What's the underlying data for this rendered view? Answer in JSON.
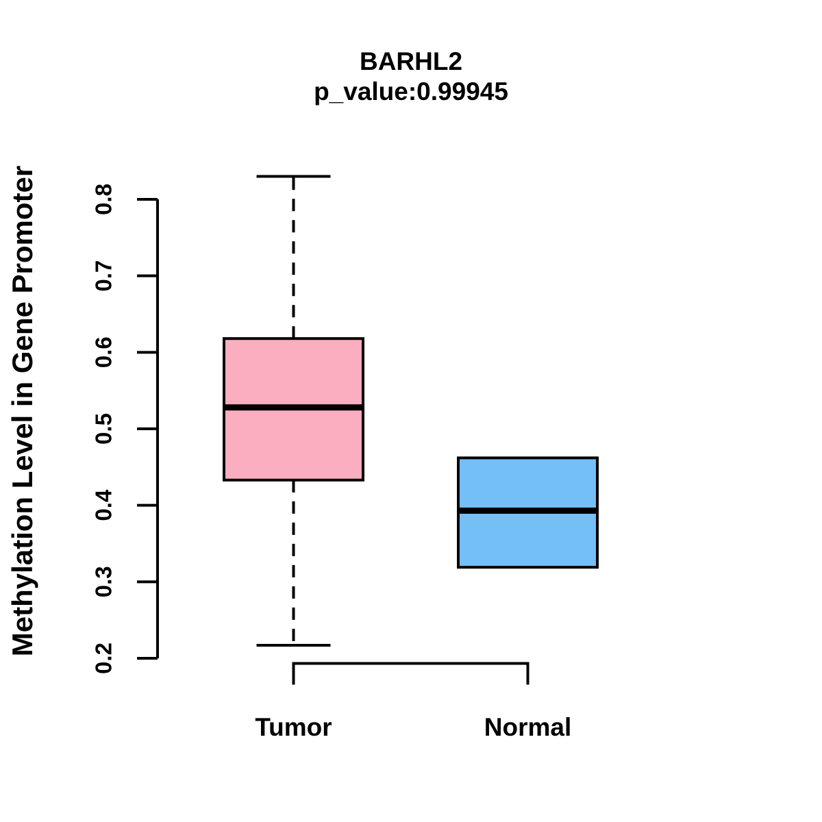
{
  "chart_data": {
    "type": "boxplot",
    "title": "BARHL2",
    "subtitle": "p_value:0.99945",
    "ylabel": "Methylation Level in Gene Promoter",
    "xlabel": "",
    "categories": [
      "Tumor",
      "Normal"
    ],
    "series": [
      {
        "name": "Tumor",
        "color": "#FCAEC1",
        "whisker_low": 0.217,
        "q1": 0.433,
        "median": 0.528,
        "q3": 0.618,
        "whisker_high": 0.83
      },
      {
        "name": "Normal",
        "color": "#74BFF6",
        "whisker_low": 0.319,
        "q1": 0.319,
        "median": 0.393,
        "q3": 0.462,
        "whisker_high": 0.462
      }
    ],
    "yticks": [
      0.2,
      0.3,
      0.4,
      0.5,
      0.6,
      0.7,
      0.8
    ],
    "ylim": [
      0.19,
      0.84
    ],
    "grid": false,
    "legend": "none",
    "line_color": "#000000",
    "background_color": "#ffffff"
  }
}
